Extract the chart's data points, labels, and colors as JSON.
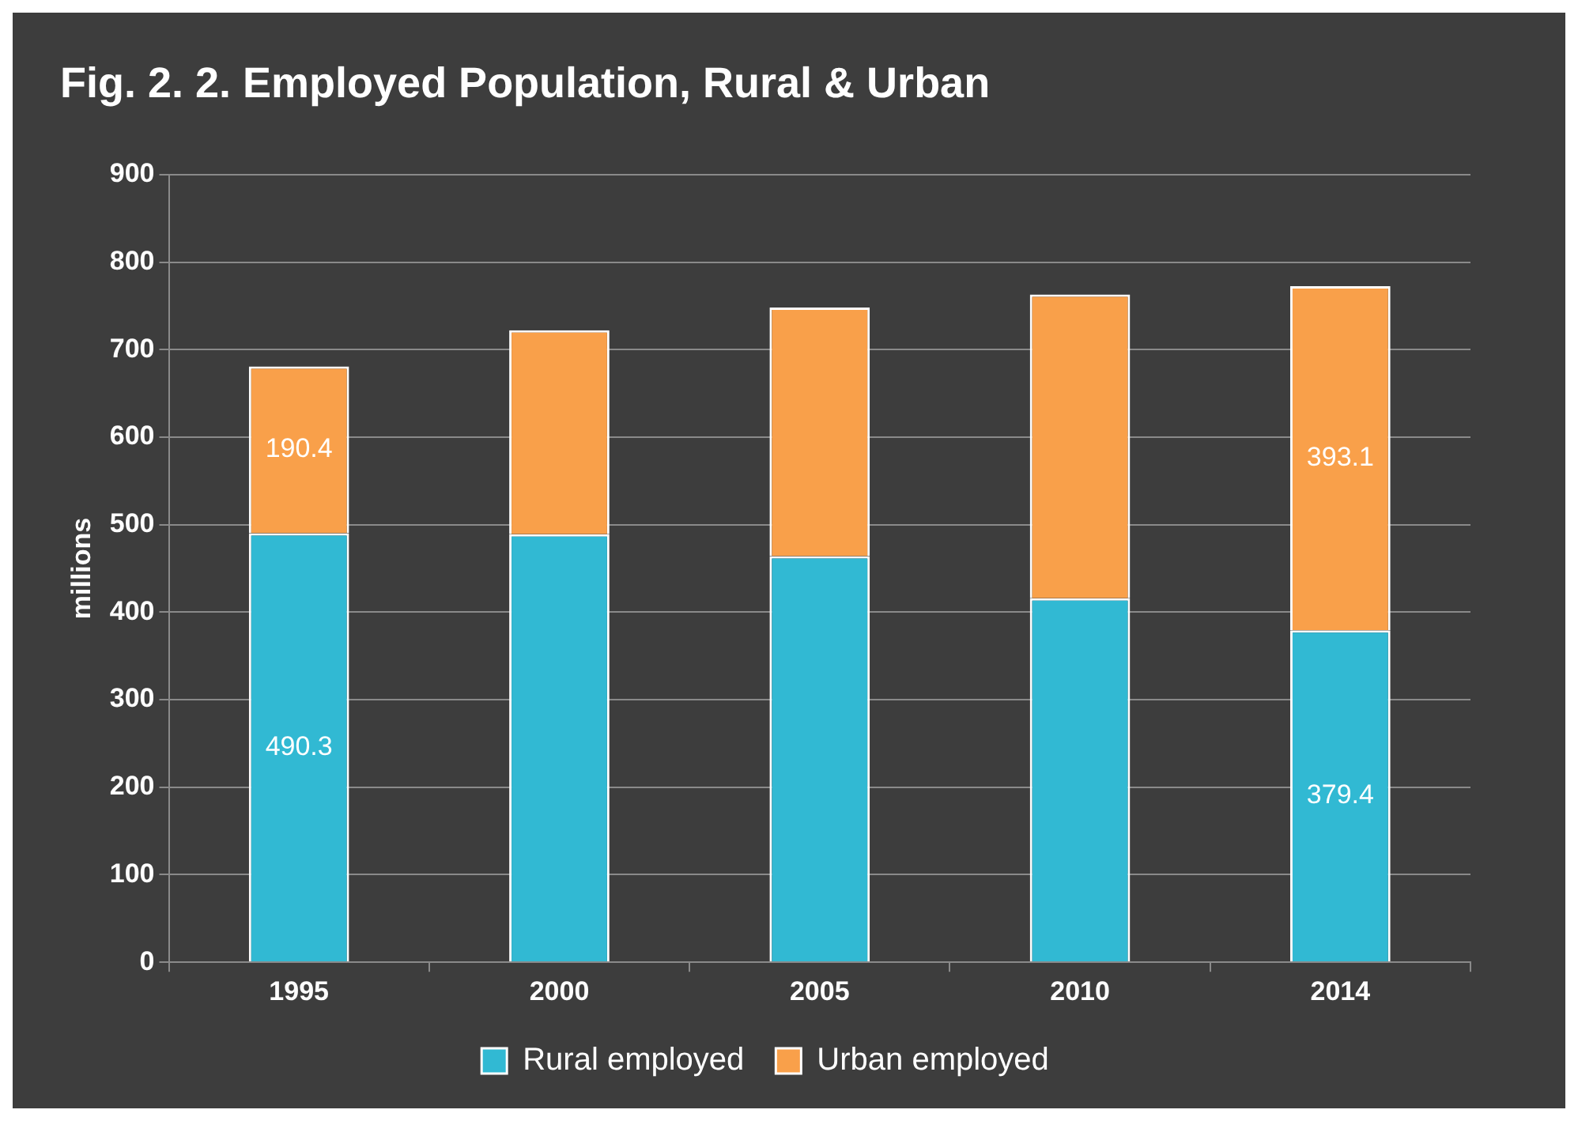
{
  "chart_data": {
    "type": "bar",
    "title": "Fig. 2. 2. Employed Population, Rural & Urban",
    "ylabel": "millions",
    "categories": [
      "1995",
      "2000",
      "2005",
      "2010",
      "2014"
    ],
    "stacked": true,
    "series": [
      {
        "name": "Rural employed",
        "color": "#31b9d3",
        "values": [
          490.3,
          489,
          464,
          416,
          379.4
        ],
        "value_labels": [
          "490.3",
          null,
          null,
          null,
          "379.4"
        ]
      },
      {
        "name": "Urban employed",
        "color": "#f9a04a",
        "values": [
          190.4,
          233,
          284,
          347,
          393.1
        ],
        "value_labels": [
          "190.4",
          null,
          null,
          null,
          "393.1"
        ]
      }
    ],
    "ylim": [
      0,
      900
    ],
    "yticks": [
      0,
      100,
      200,
      300,
      400,
      500,
      600,
      700,
      800,
      900
    ],
    "grid": "y",
    "legend": "bottom"
  }
}
